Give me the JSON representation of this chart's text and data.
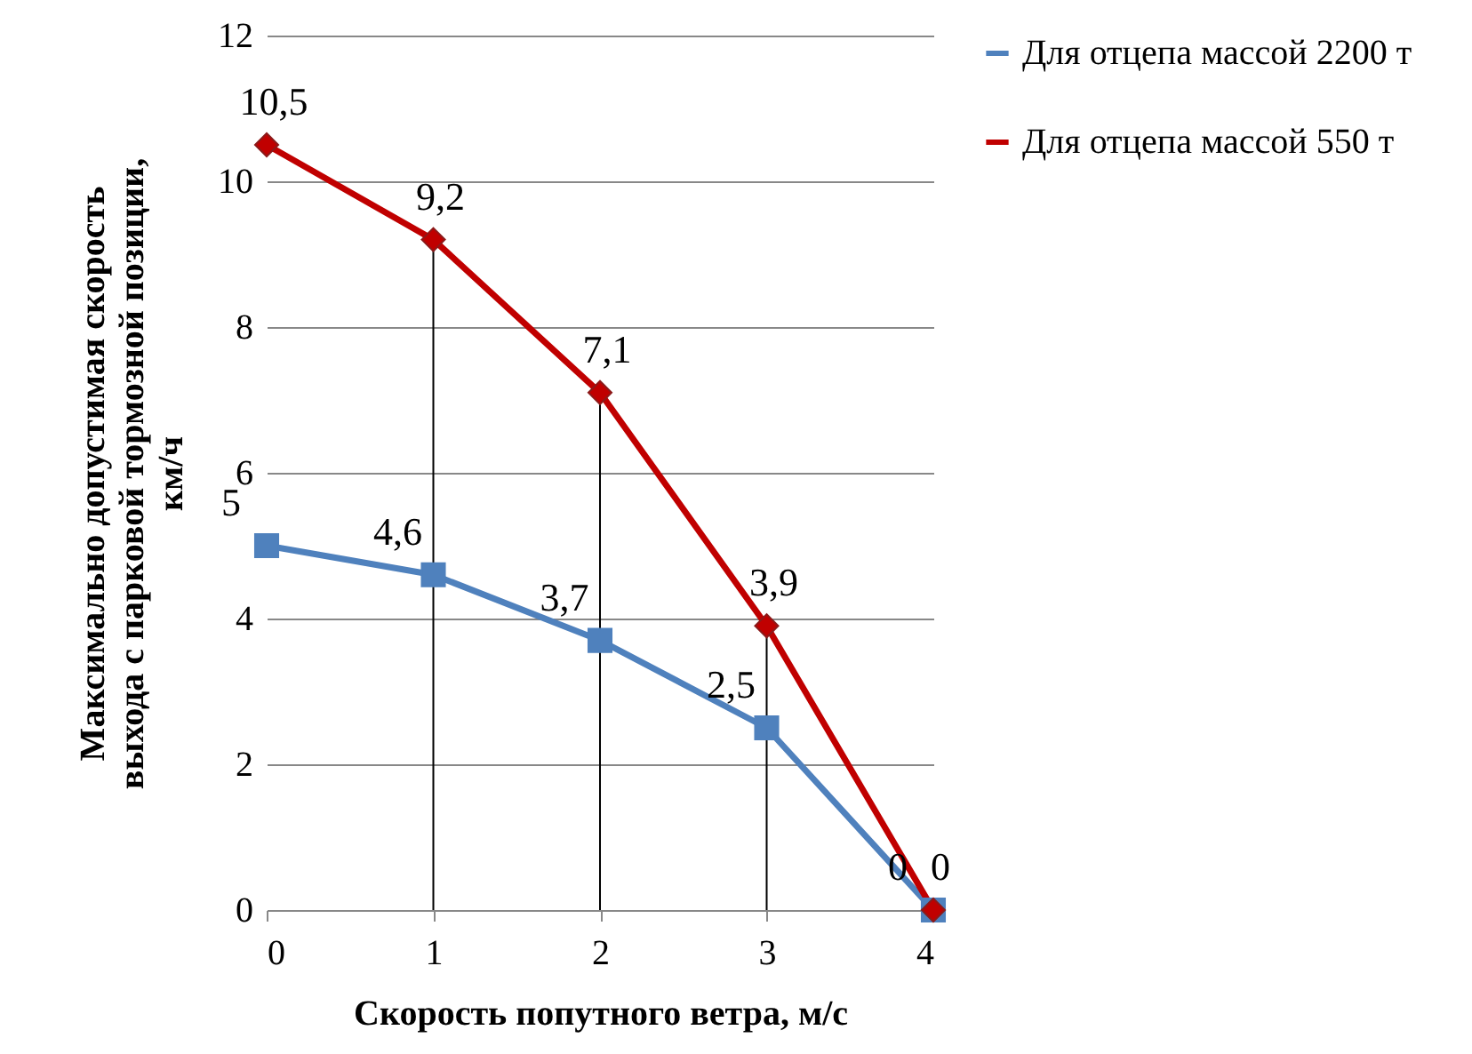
{
  "chart_data": {
    "type": "line",
    "xlabel": "Скорость попутного ветра, м/с",
    "ylabel": "Максимально допустимая скорость выхода с парковой тормозной позиции, км/ч",
    "x": [
      0,
      1,
      2,
      3,
      4
    ],
    "xlim": [
      0,
      4
    ],
    "xticks": [
      0,
      1,
      2,
      3,
      4
    ],
    "ylim": [
      0,
      12
    ],
    "yticks": [
      0,
      2,
      4,
      6,
      8,
      10,
      12
    ],
    "grid": "y",
    "legend": "right",
    "series": [
      {
        "name": "Для отцепа массой 2200 т",
        "color": "#4f81bd",
        "marker": "square",
        "values": [
          5,
          4.6,
          3.7,
          2.5,
          0
        ],
        "value_labels": [
          "5",
          "4,6",
          "3,7",
          "2,5",
          "0"
        ]
      },
      {
        "name": "Для отцепа массой 550 т",
        "color": "#c00000",
        "marker": "diamond",
        "values": [
          10.5,
          9.2,
          7.1,
          3.9,
          0
        ],
        "value_labels": [
          "10,5",
          "9,2",
          "7,1",
          "3,9",
          "0"
        ]
      }
    ]
  }
}
